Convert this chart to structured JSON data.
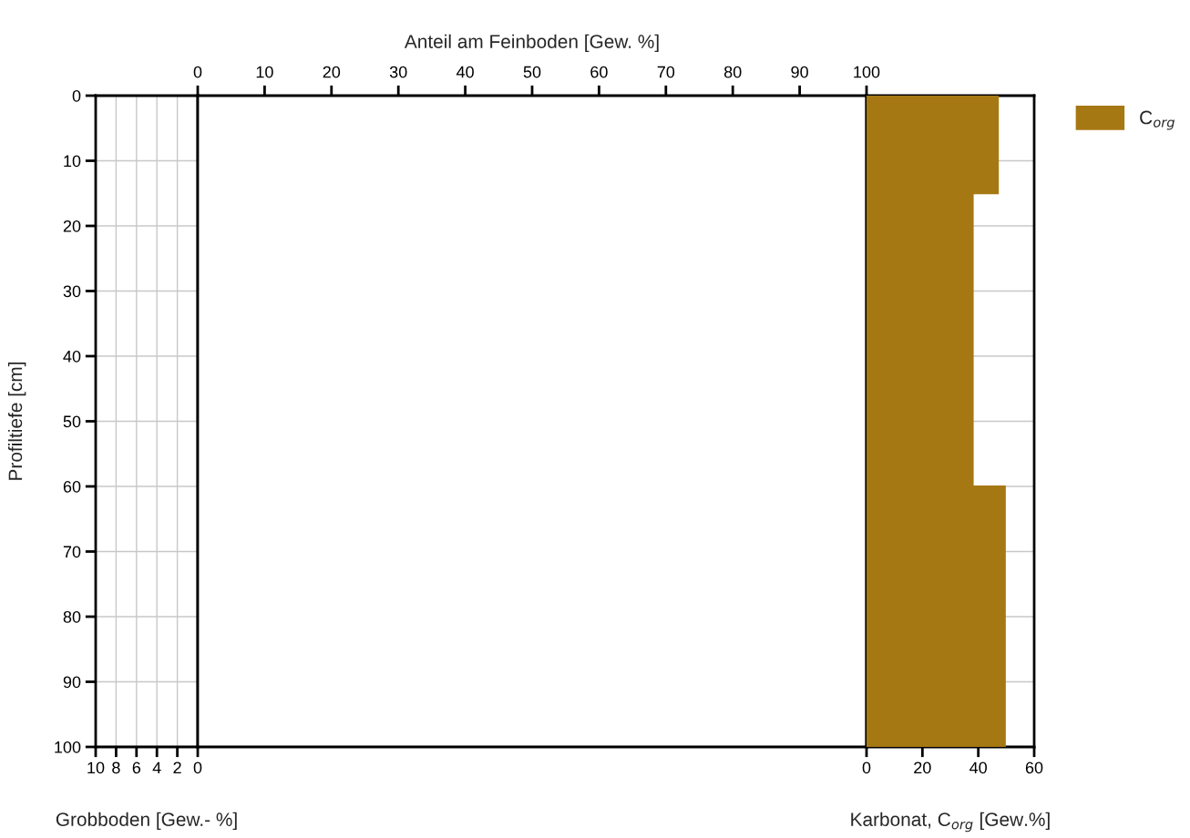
{
  "chart_data": [
    {
      "type": "histogram",
      "orientation": "horizontal",
      "bins": [
        0,
        100
      ],
      "values": [
        null
      ],
      "xlim": [
        10,
        0
      ],
      "xticks": [
        10,
        8,
        6,
        4,
        2,
        0
      ],
      "ylim": [
        100,
        0
      ],
      "yticks": [
        0,
        10,
        20,
        30,
        40,
        50,
        60,
        70,
        80,
        90,
        100
      ],
      "xlabel": "Grobboden [Gew.- %]",
      "ylabel": "Profiltiefe [cm]",
      "grid": true
    },
    {
      "type": "histogram",
      "orientation": "horizontal",
      "xlim": [
        0,
        100
      ],
      "xticks": [
        0,
        10,
        20,
        30,
        40,
        50,
        60,
        70,
        80,
        90,
        100
      ],
      "xlabel": "Anteil am Feinboden [Gew. %]",
      "ylim": [
        100,
        0
      ],
      "tick_labels": "x"
    },
    {
      "type": "histogram",
      "orientation": "horizontal",
      "bins": [
        0,
        15,
        60,
        100
      ],
      "series": [
        {
          "name": "C$_{org}$",
          "color": "#a67814",
          "values": [
            47,
            38,
            49.5
          ]
        }
      ],
      "xlim": [
        0,
        60
      ],
      "xticks": [
        0,
        20,
        40,
        60
      ],
      "ylim": [
        100,
        0
      ],
      "xlabel": "Karbonat, C$_{org}$ [Gew.%]",
      "tick_labels": "x",
      "grid": "y",
      "legend": "top right"
    }
  ]
}
